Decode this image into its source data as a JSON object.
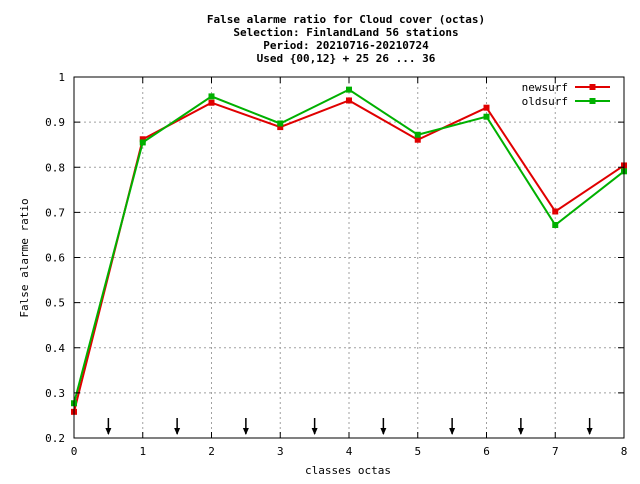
{
  "chart_data": {
    "type": "line",
    "title_lines": [
      "False alarme ratio  for Cloud cover (octas)",
      "Selection: FinlandLand     56 stations",
      "Period: 20210716-20210724",
      "Used {00,12} + 25 26 ... 36"
    ],
    "xlabel": "classes octas",
    "ylabel": "False alarme ratio",
    "xlim": [
      0,
      8
    ],
    "ylim": [
      0.2,
      1.0
    ],
    "x_ticks": [
      0,
      1,
      2,
      3,
      4,
      5,
      6,
      7,
      8
    ],
    "x_tick_labels": [
      "0",
      "1",
      "2",
      "3",
      "4",
      "5",
      "6",
      "7",
      "8"
    ],
    "y_ticks": [
      0.2,
      0.3,
      0.4,
      0.5,
      0.6,
      0.7,
      0.8,
      0.9,
      1.0
    ],
    "y_tick_labels": [
      "0.2",
      "0.3",
      "0.4",
      "0.5",
      "0.6",
      "0.7",
      "0.8",
      "0.9",
      "1"
    ],
    "grid": true,
    "legend_position": "top-right",
    "x": [
      0,
      1,
      2,
      3,
      4,
      5,
      6,
      7,
      8
    ],
    "series": [
      {
        "name": "newsurf",
        "color": "#e00000",
        "values": [
          0.258,
          0.862,
          0.943,
          0.889,
          0.948,
          0.861,
          0.932,
          0.702,
          0.804
        ]
      },
      {
        "name": "oldsurf",
        "color": "#00b000",
        "values": [
          0.277,
          0.855,
          0.957,
          0.897,
          0.972,
          0.872,
          0.912,
          0.672,
          0.791
        ]
      }
    ],
    "class_boundary_markers": [
      0.5,
      1.5,
      2.5,
      3.5,
      4.5,
      5.5,
      6.5,
      7.5
    ]
  }
}
